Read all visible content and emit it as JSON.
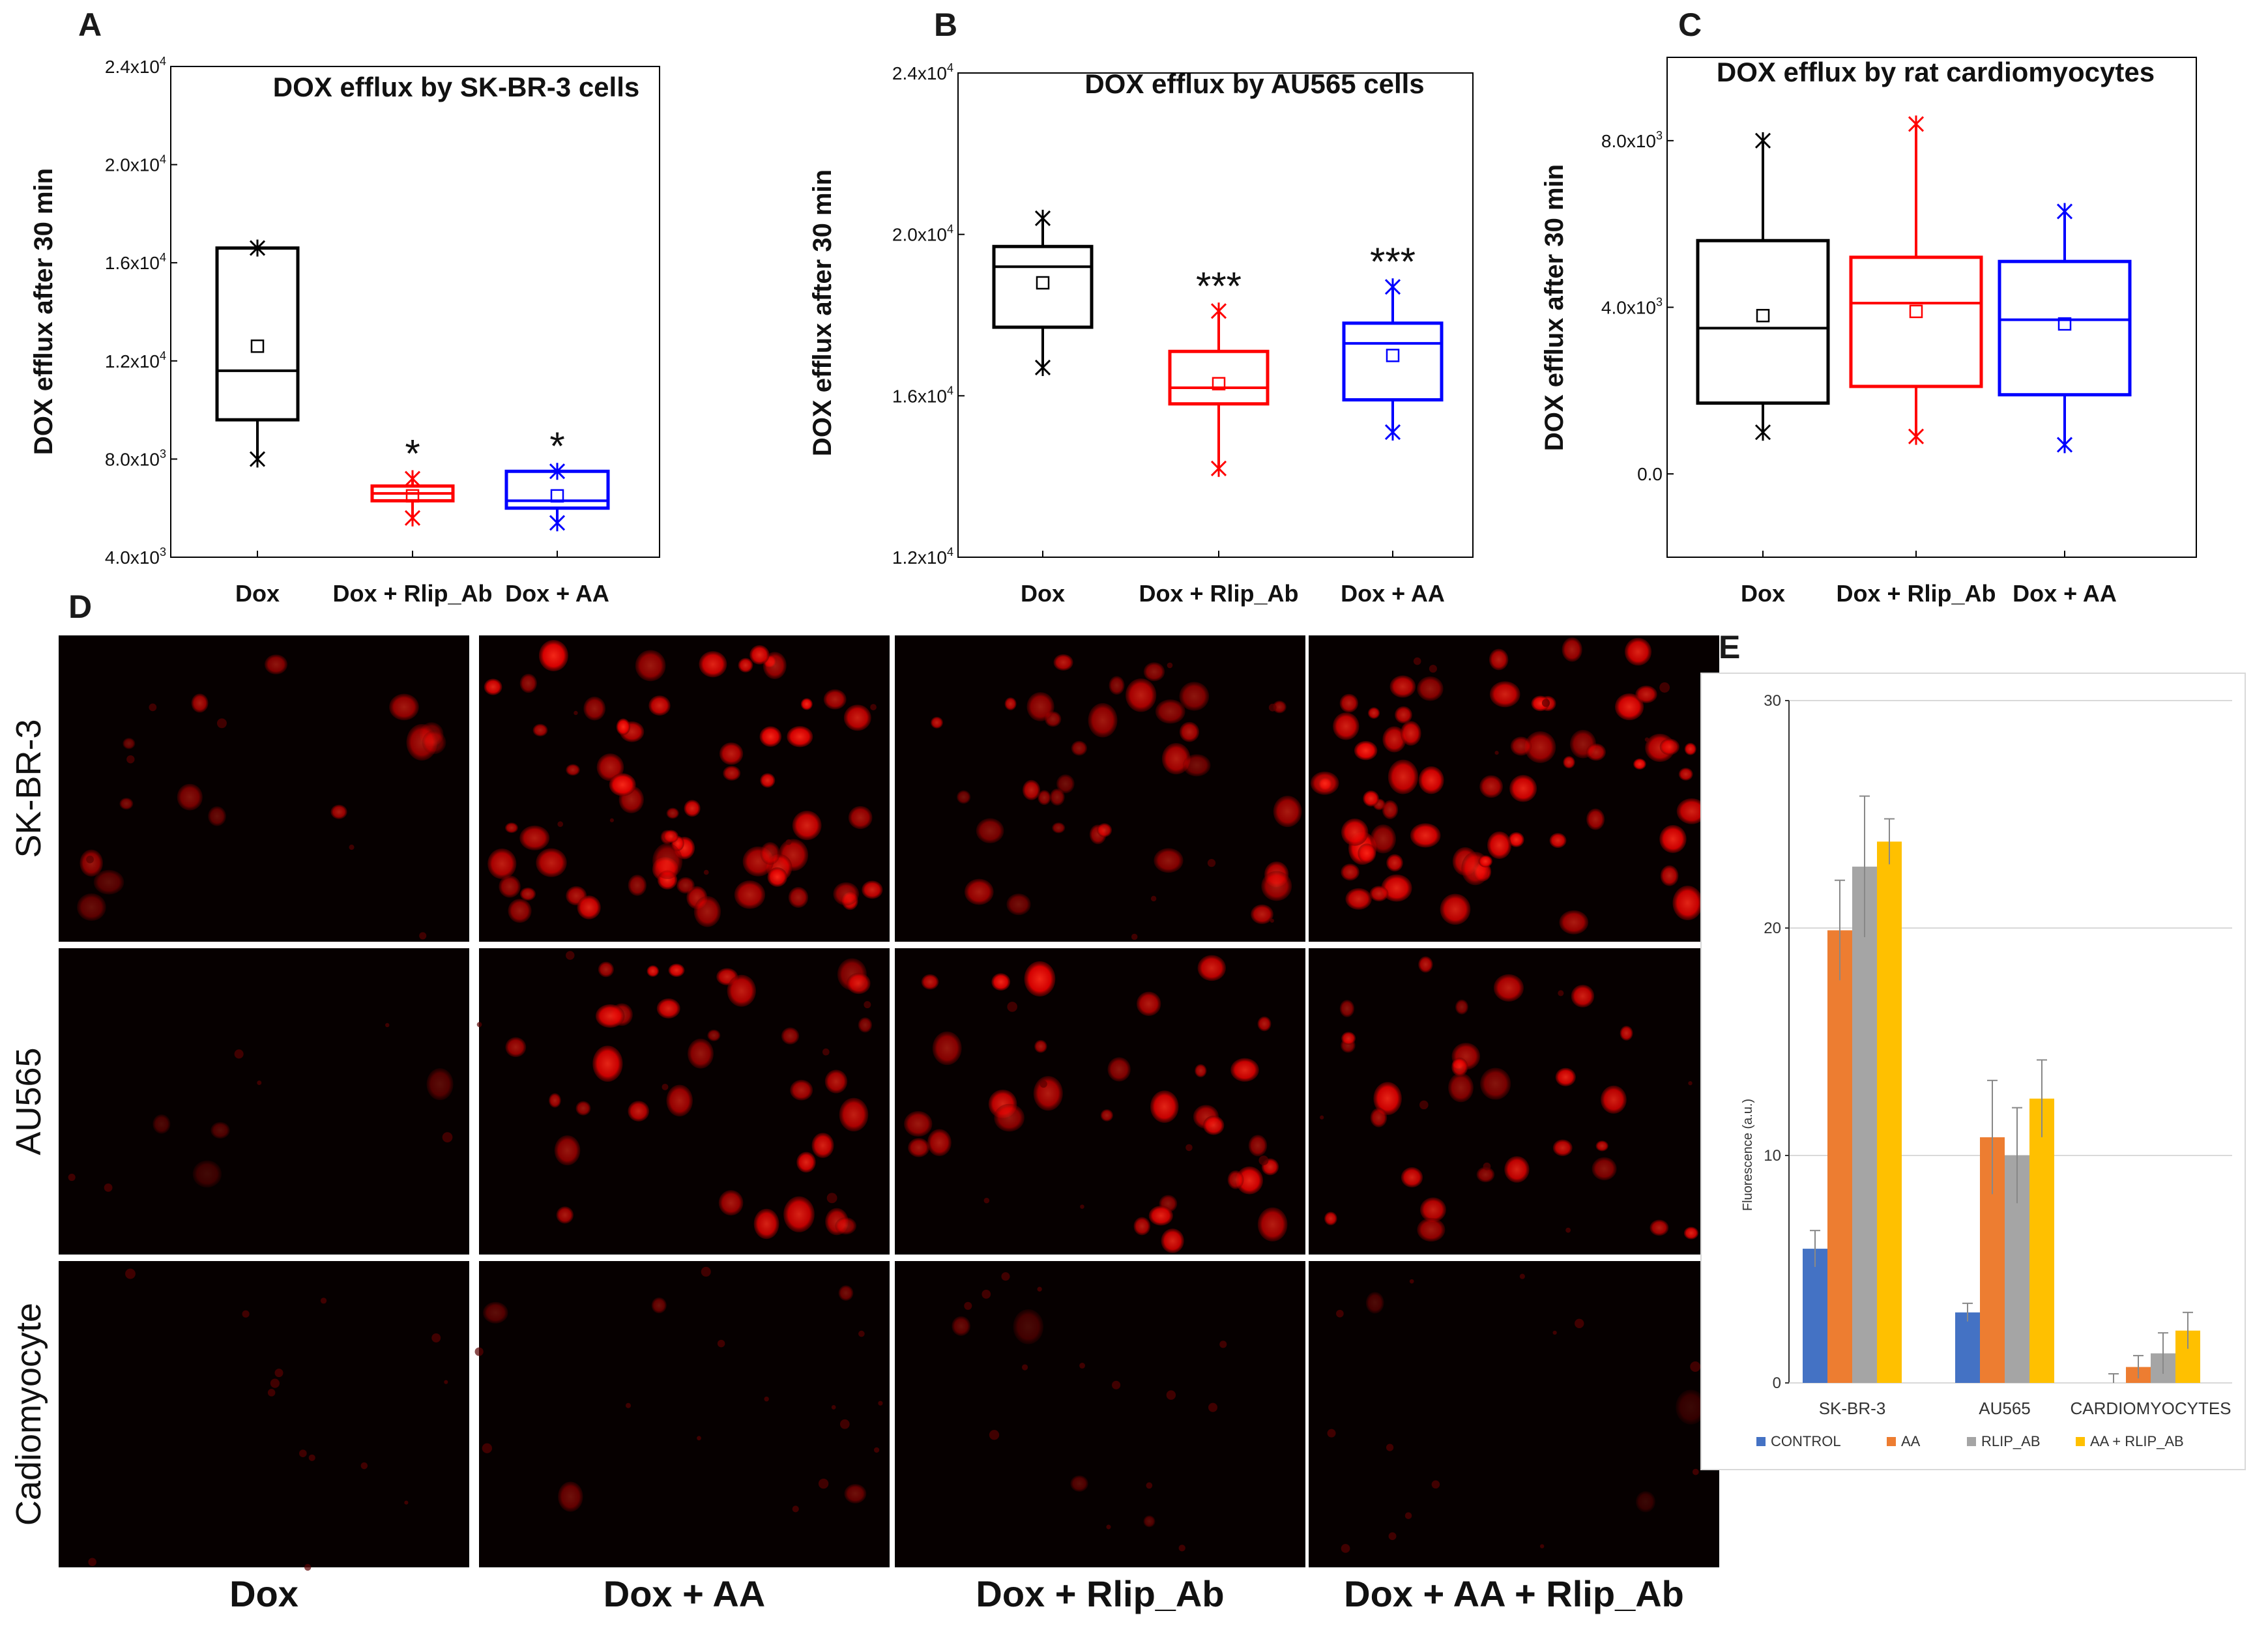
{
  "chart_data": [
    {
      "id": "A",
      "type": "box",
      "panel_label": "A",
      "title": "DOX efflux by  SK-BR-3 cells",
      "ylabel": "DOX efflux after 30 min",
      "ylim": [
        4000,
        24000
      ],
      "yticks": [
        {
          "v": 4000,
          "m": "4.0x10",
          "e": "3"
        },
        {
          "v": 8000,
          "m": "8.0x10",
          "e": "3"
        },
        {
          "v": 12000,
          "m": "1.2x10",
          "e": "4"
        },
        {
          "v": 16000,
          "m": "1.6x10",
          "e": "4"
        },
        {
          "v": 20000,
          "m": "2.0x10",
          "e": "4"
        },
        {
          "v": 24000,
          "m": "2.4x10",
          "e": "4"
        }
      ],
      "categories": [
        "Dox",
        "Dox + Rlip_Ab",
        "Dox + AA"
      ],
      "boxes": [
        {
          "color": "#000000",
          "q1": 9600,
          "median": 11600,
          "q3": 16600,
          "whisker_low": 8000,
          "whisker_high": 16600,
          "mean": 12600,
          "sig": ""
        },
        {
          "color": "#ff0000",
          "q1": 6300,
          "median": 6600,
          "q3": 6900,
          "whisker_low": 5600,
          "whisker_high": 7200,
          "mean": 6500,
          "sig": "*"
        },
        {
          "color": "#0000ff",
          "q1": 6000,
          "median": 6300,
          "q3": 7500,
          "whisker_low": 5400,
          "whisker_high": 7500,
          "mean": 6500,
          "sig": "*"
        }
      ]
    },
    {
      "id": "B",
      "type": "box",
      "panel_label": "B",
      "title": "DOX efflux by AU565 cells",
      "ylabel": "DOX efflux after 30 min",
      "ylim": [
        12000,
        24000
      ],
      "yticks": [
        {
          "v": 12000,
          "m": "1.2x10",
          "e": "4"
        },
        {
          "v": 16000,
          "m": "1.6x10",
          "e": "4"
        },
        {
          "v": 20000,
          "m": "2.0x10",
          "e": "4"
        },
        {
          "v": 24000,
          "m": "2.4x10",
          "e": "4"
        }
      ],
      "categories": [
        "Dox",
        "Dox + Rlip_Ab",
        "Dox + AA"
      ],
      "boxes": [
        {
          "color": "#000000",
          "q1": 17700,
          "median": 19200,
          "q3": 19700,
          "whisker_low": 16700,
          "whisker_high": 20400,
          "mean": 18800,
          "sig": ""
        },
        {
          "color": "#ff0000",
          "q1": 15800,
          "median": 16200,
          "q3": 17100,
          "whisker_low": 14200,
          "whisker_high": 18100,
          "mean": 16300,
          "sig": "***"
        },
        {
          "color": "#0000ff",
          "q1": 15900,
          "median": 17300,
          "q3": 17800,
          "whisker_low": 15100,
          "whisker_high": 18700,
          "mean": 17000,
          "sig": "***"
        }
      ]
    },
    {
      "id": "C",
      "type": "box",
      "panel_label": "C",
      "title": "DOX efflux by rat cardiomyocytes",
      "ylabel": "DOX efflux after 30 min",
      "ylim": [
        -2000,
        10000
      ],
      "yticks": [
        {
          "v": 0,
          "m": "0.0",
          "e": ""
        },
        {
          "v": 4000,
          "m": "4.0x10",
          "e": "3"
        },
        {
          "v": 8000,
          "m": "8.0x10",
          "e": "3"
        }
      ],
      "categories": [
        "Dox",
        "Dox + Rlip_Ab",
        "Dox + AA"
      ],
      "boxes": [
        {
          "color": "#000000",
          "q1": 1700,
          "median": 3500,
          "q3": 5600,
          "whisker_low": 1000,
          "whisker_high": 8000,
          "mean": 3800,
          "sig": ""
        },
        {
          "color": "#ff0000",
          "q1": 2100,
          "median": 4100,
          "q3": 5200,
          "whisker_low": 900,
          "whisker_high": 8400,
          "mean": 3900,
          "sig": ""
        },
        {
          "color": "#0000ff",
          "q1": 1900,
          "median": 3700,
          "q3": 5100,
          "whisker_low": 700,
          "whisker_high": 6300,
          "mean": 3600,
          "sig": ""
        }
      ]
    },
    {
      "id": "E",
      "type": "bar",
      "panel_label": "E",
      "ylabel": "Fluorescence (a.u.)",
      "ylim": [
        0,
        30
      ],
      "yticks": [
        0,
        10,
        20,
        30
      ],
      "categories": [
        "SK-BR-3",
        "AU565",
        "CARDIOMYOCYTES"
      ],
      "series": [
        {
          "name": "CONTROL",
          "color": "#4472c4",
          "values": [
            5.9,
            3.1,
            0
          ],
          "errors": [
            0.8,
            0.4,
            0.4
          ]
        },
        {
          "name": "AA",
          "color": "#ed7d31",
          "values": [
            19.9,
            10.8,
            0.7
          ],
          "errors": [
            2.2,
            2.5,
            0.5
          ]
        },
        {
          "name": "RLIP_AB",
          "color": "#a5a5a5",
          "values": [
            22.7,
            10.0,
            1.3
          ],
          "errors": [
            3.1,
            2.1,
            0.9
          ]
        },
        {
          "name": "AA + RLIP_AB",
          "color": "#ffc000",
          "values": [
            23.8,
            12.5,
            2.3
          ],
          "errors": [
            1.0,
            1.7,
            0.8
          ]
        }
      ]
    }
  ],
  "panel_d": {
    "label": "D",
    "row_labels": [
      "SK-BR-3",
      "AU565",
      "Cadiomyocyte"
    ],
    "column_labels": [
      "Dox",
      "Dox + AA",
      "Dox + Rlip_Ab",
      "Dox + AA + Rlip_Ab"
    ]
  }
}
